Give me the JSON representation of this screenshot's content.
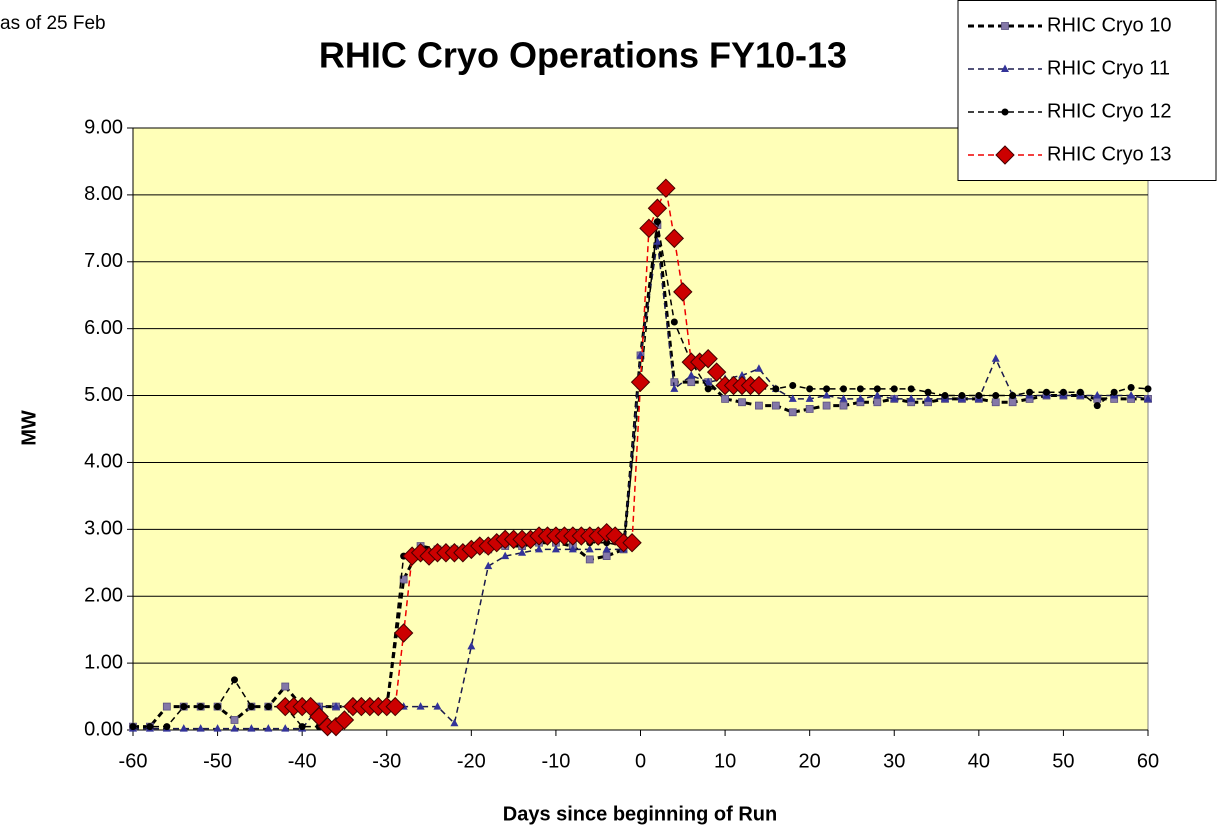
{
  "chart_data": {
    "type": "line",
    "title": "RHIC Cryo Operations FY10-13",
    "annotation": "as of 25 Feb",
    "x_label": "Days since beginning of Run",
    "y_label": "MW",
    "xlim": [
      -60,
      60
    ],
    "xticks": [
      -60,
      -50,
      -40,
      -30,
      -20,
      -10,
      0,
      10,
      20,
      30,
      40,
      50,
      60
    ],
    "ylim": [
      0,
      9
    ],
    "yticks": [
      {
        "value": 0,
        "label": "0.00"
      },
      {
        "value": 1,
        "label": "1.00"
      },
      {
        "value": 2,
        "label": "2.00"
      },
      {
        "value": 3,
        "label": "3.00"
      },
      {
        "value": 4,
        "label": "4.00"
      },
      {
        "value": 5,
        "label": "5.00"
      },
      {
        "value": 6,
        "label": "6.00"
      },
      {
        "value": 7,
        "label": "7.00"
      },
      {
        "value": 8,
        "label": "8.00"
      },
      {
        "value": 9,
        "label": "9.00"
      }
    ],
    "grid": true,
    "legend": "top-right",
    "plot_background": "#ffffb8",
    "x": [
      -60,
      -58,
      -56,
      -54,
      -52,
      -50,
      -48,
      -46,
      -44,
      -42,
      -40,
      -38,
      -36,
      -34,
      -32,
      -30,
      -28,
      -26,
      -24,
      -22,
      -20,
      -18,
      -16,
      -14,
      -12,
      -10,
      -8,
      -6,
      -4,
      -2,
      0,
      2,
      4,
      6,
      8,
      10,
      12,
      14,
      16,
      18,
      20,
      22,
      24,
      26,
      28,
      30,
      32,
      34,
      36,
      38,
      40,
      42,
      44,
      46,
      48,
      50,
      52,
      54,
      56,
      58,
      60
    ],
    "series": [
      {
        "name": "RHIC Cryo 10",
        "color": "#8478a8",
        "line_color": "#000000",
        "line_width": 3,
        "marker": "square",
        "values": [
          0.05,
          0.05,
          0.35,
          0.35,
          0.35,
          0.35,
          0.15,
          0.35,
          0.35,
          0.65,
          0.35,
          0.35,
          0.35,
          0.35,
          0.35,
          0.35,
          2.25,
          2.75,
          2.7,
          2.7,
          2.7,
          2.7,
          2.75,
          2.75,
          2.8,
          2.8,
          2.75,
          2.55,
          2.6,
          2.7,
          5.6,
          7.55,
          5.2,
          5.2,
          5.2,
          4.95,
          4.9,
          4.85,
          4.85,
          4.75,
          4.8,
          4.85,
          4.85,
          4.9,
          4.9,
          4.95,
          4.9,
          4.9,
          4.95,
          4.95,
          4.95,
          4.9,
          4.9,
          4.95,
          5.0,
          5.0,
          5.0,
          4.95,
          4.95,
          4.95,
          4.95
        ]
      },
      {
        "name": "RHIC Cryo 11",
        "color": "#333399",
        "line_color": "#1a1a4d",
        "line_width": 1.5,
        "marker": "triangle",
        "values": [
          0.02,
          0.02,
          0.02,
          0.02,
          0.02,
          0.02,
          0.02,
          0.02,
          0.02,
          0.02,
          0.02,
          0.35,
          0.35,
          0.35,
          0.35,
          0.35,
          0.35,
          0.35,
          0.35,
          0.1,
          1.25,
          2.45,
          2.6,
          2.65,
          2.7,
          2.7,
          2.7,
          2.7,
          2.7,
          2.7,
          5.6,
          7.3,
          5.1,
          5.3,
          5.2,
          5.25,
          5.3,
          5.4,
          5.1,
          4.95,
          4.95,
          5.0,
          4.95,
          4.95,
          5.0,
          4.95,
          4.95,
          4.95,
          4.95,
          4.95,
          4.95,
          5.55,
          5.0,
          5.0,
          5.0,
          5.0,
          5.0,
          5.0,
          5.0,
          5.0,
          4.95
        ]
      },
      {
        "name": "RHIC Cryo 12",
        "color": "#000000",
        "line_color": "#000000",
        "line_width": 1.5,
        "marker": "circle",
        "values": [
          0.05,
          0.05,
          0.05,
          0.35,
          0.35,
          0.35,
          0.75,
          0.35,
          0.35,
          0.35,
          0.05,
          0.05,
          0.05,
          0.35,
          0.35,
          0.35,
          2.6,
          2.65,
          2.7,
          2.7,
          2.75,
          2.75,
          2.8,
          2.85,
          2.85,
          2.85,
          2.85,
          2.8,
          2.8,
          2.75,
          5.2,
          7.6,
          6.1,
          5.5,
          5.1,
          5.1,
          5.1,
          5.1,
          5.1,
          5.15,
          5.1,
          5.1,
          5.1,
          5.1,
          5.1,
          5.1,
          5.1,
          5.05,
          5.0,
          5.0,
          5.0,
          5.0,
          5.0,
          5.05,
          5.05,
          5.05,
          5.05,
          4.85,
          5.05,
          5.12,
          5.1
        ]
      },
      {
        "name": "RHIC Cryo 13",
        "color": "#cc0000",
        "line_color": "#ee0000",
        "line_width": 1.5,
        "marker": "diamond",
        "x": [
          -42,
          -41,
          -40,
          -39,
          -38,
          -37,
          -36,
          -35,
          -34,
          -33,
          -32,
          -31,
          -30,
          -29,
          -28,
          -27,
          -26,
          -25,
          -24,
          -23,
          -22,
          -21,
          -20,
          -19,
          -18,
          -17,
          -16,
          -15,
          -14,
          -13,
          -12,
          -11,
          -10,
          -9,
          -8,
          -7,
          -6,
          -5,
          -4,
          -3,
          -2,
          -1,
          0,
          1,
          2,
          3,
          4,
          5,
          6,
          7,
          8,
          9,
          10,
          11,
          12,
          13,
          14
        ],
        "values": [
          0.35,
          0.35,
          0.35,
          0.35,
          0.2,
          0.05,
          0.05,
          0.15,
          0.35,
          0.35,
          0.35,
          0.35,
          0.35,
          0.35,
          1.45,
          2.6,
          2.65,
          2.6,
          2.65,
          2.65,
          2.65,
          2.65,
          2.7,
          2.75,
          2.75,
          2.8,
          2.85,
          2.85,
          2.85,
          2.85,
          2.9,
          2.9,
          2.9,
          2.9,
          2.9,
          2.9,
          2.9,
          2.9,
          2.95,
          2.9,
          2.8,
          2.8,
          5.2,
          7.5,
          7.8,
          8.1,
          7.35,
          6.55,
          5.5,
          5.5,
          5.55,
          5.35,
          5.15,
          5.15,
          5.15,
          5.15,
          5.15
        ]
      }
    ]
  }
}
